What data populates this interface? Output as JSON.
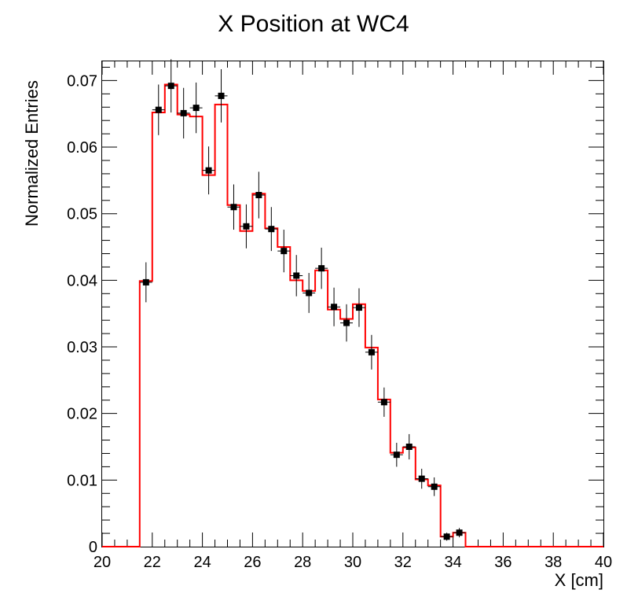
{
  "chart_data": {
    "type": "histogram",
    "title": "X Position at WC4",
    "xlabel": "X [cm]",
    "ylabel": "Normalized Entries",
    "xlim": [
      20,
      40
    ],
    "ylim": [
      0,
      0.073
    ],
    "x_ticks": [
      "20",
      "22",
      "24",
      "26",
      "28",
      "30",
      "32",
      "34",
      "36",
      "38",
      "40"
    ],
    "y_ticks": [
      "0",
      "0.01",
      "0.02",
      "0.03",
      "0.04",
      "0.05",
      "0.06",
      "0.07"
    ],
    "bin_width": 0.5,
    "grid": false,
    "legend": "none",
    "series": [
      {
        "kind": "step-histogram",
        "color": "#ff0000",
        "bins_start": 20,
        "values": [
          0,
          0,
          0,
          0.0399,
          0.0652,
          0.0694,
          0.0649,
          0.0646,
          0.0558,
          0.0664,
          0.0513,
          0.0474,
          0.053,
          0.0478,
          0.045,
          0.04,
          0.0384,
          0.0415,
          0.0356,
          0.0342,
          0.0364,
          0.0299,
          0.0221,
          0.0141,
          0.0149,
          0.0101,
          0.0092,
          0.0015,
          0.0021,
          0,
          0,
          0,
          0,
          0,
          0,
          0,
          0,
          0,
          0,
          0
        ]
      },
      {
        "kind": "points-with-errors",
        "color": "#000000",
        "x": [
          21.75,
          22.25,
          22.75,
          23.25,
          23.75,
          24.25,
          24.75,
          25.25,
          25.75,
          26.25,
          26.75,
          27.25,
          27.75,
          28.25,
          28.75,
          29.25,
          29.75,
          30.25,
          30.75,
          31.25,
          31.75,
          32.25,
          32.75,
          33.25,
          33.75,
          34.25
        ],
        "y": [
          0.0397,
          0.0656,
          0.0692,
          0.0651,
          0.0659,
          0.0565,
          0.0677,
          0.051,
          0.0481,
          0.0528,
          0.0477,
          0.0444,
          0.0407,
          0.0381,
          0.0418,
          0.036,
          0.0336,
          0.0359,
          0.0292,
          0.0217,
          0.0138,
          0.015,
          0.0102,
          0.009,
          0.0015,
          0.0021
        ],
        "yerr": [
          0.003,
          0.0038,
          0.004,
          0.0038,
          0.0038,
          0.0036,
          0.004,
          0.0034,
          0.0033,
          0.0035,
          0.0033,
          0.0032,
          0.0031,
          0.003,
          0.0031,
          0.0029,
          0.0028,
          0.0029,
          0.0026,
          0.0022,
          0.0018,
          0.0019,
          0.0015,
          0.0014,
          0.0006,
          0.0007
        ]
      }
    ]
  }
}
